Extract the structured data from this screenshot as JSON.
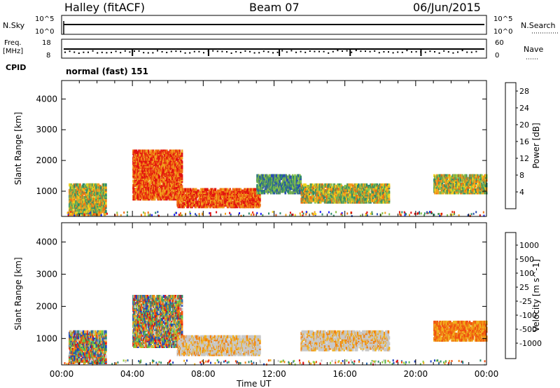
{
  "header": {
    "station": "Halley (fitACF)",
    "beam": "Beam 07",
    "date": "06/Jun/2015"
  },
  "panels": {
    "nsky": {
      "label": "N.Sky",
      "left_ticks": [
        "10^5",
        "10^0"
      ]
    },
    "nsearch": {
      "label": "N.Search",
      "right_ticks": [
        "10^5",
        "10^0"
      ]
    },
    "freq": {
      "label": "Freq.",
      "unit": "[MHz]",
      "left_ticks": [
        "18",
        "8"
      ]
    },
    "nave": {
      "label": "Nave",
      "right_ticks": [
        "60",
        "0"
      ]
    },
    "cpid": {
      "label": "CPID",
      "mode": "normal (fast) 151"
    }
  },
  "chart_data": [
    {
      "type": "heatmap",
      "quantity": "power",
      "ylabel": "Slant Range [km]",
      "xlabel": "Time UT",
      "xlim": [
        "00:00",
        "24:00"
      ],
      "ylim": [
        180,
        4600
      ],
      "x_ticks": [
        "00:00",
        "04:00",
        "08:00",
        "12:00",
        "16:00",
        "20:00",
        "00:00"
      ],
      "y_ticks": [
        1000,
        2000,
        3000,
        4000
      ],
      "colorbar": {
        "label": "Power [dB]",
        "ticks": [
          4,
          8,
          12,
          16,
          20,
          24,
          28
        ],
        "range": [
          0,
          30
        ],
        "colors": [
          "#1a1aff",
          "#2a4fb0",
          "#2d8a6a",
          "#5a9a5a",
          "#8ac24a",
          "#f2d21a",
          "#f0a020",
          "#f07010",
          "#e83010",
          "#e01010"
        ]
      },
      "echo_regions": [
        {
          "t_start": 0.4,
          "t_end": 2.5,
          "r_min": 300,
          "r_max": 1300,
          "level": "medium"
        },
        {
          "t_start": 4.0,
          "t_end": 6.8,
          "r_min": 800,
          "r_max": 2400,
          "level": "high"
        },
        {
          "t_start": 6.5,
          "t_end": 11.2,
          "r_min": 550,
          "r_max": 1150,
          "level": "high"
        },
        {
          "t_start": 11.0,
          "t_end": 13.5,
          "r_min": 1000,
          "r_max": 1600,
          "level": "low"
        },
        {
          "t_start": 13.5,
          "t_end": 18.5,
          "r_min": 700,
          "r_max": 1300,
          "level": "medium"
        },
        {
          "t_start": 21.0,
          "t_end": 24.0,
          "r_min": 1000,
          "r_max": 1600,
          "level": "medium"
        }
      ]
    },
    {
      "type": "heatmap",
      "quantity": "velocity",
      "ylabel": "Slant Range [km]",
      "xlabel": "Time UT",
      "xlim": [
        "00:00",
        "24:00"
      ],
      "ylim": [
        180,
        4600
      ],
      "x_ticks": [
        "00:00",
        "04:00",
        "08:00",
        "12:00",
        "16:00",
        "20:00",
        "00:00"
      ],
      "y_ticks": [
        1000,
        2000,
        3000,
        4000
      ],
      "colorbar": {
        "label": "Velocity [m s^-1]",
        "ticks": [
          "1000",
          "500",
          "100",
          "25",
          "-25",
          "-100",
          "-500",
          "-1000"
        ],
        "colors": [
          "#2040c0",
          "#2a6ab0",
          "#2d8a6a",
          "#5ab84a",
          "#8ad040",
          "#c8c8c8",
          "#f0b020",
          "#f08010",
          "#f05010",
          "#e01010"
        ]
      },
      "echo_regions": [
        {
          "t_start": 0.4,
          "t_end": 2.5,
          "r_min": 300,
          "r_max": 1300,
          "level": "mixed"
        },
        {
          "t_start": 4.0,
          "t_end": 6.8,
          "r_min": 800,
          "r_max": 2400,
          "level": "mixed"
        },
        {
          "t_start": 6.5,
          "t_end": 11.2,
          "r_min": 550,
          "r_max": 1150,
          "level": "ground"
        },
        {
          "t_start": 13.5,
          "t_end": 18.5,
          "r_min": 700,
          "r_max": 1300,
          "level": "ground"
        },
        {
          "t_start": 21.0,
          "t_end": 24.0,
          "r_min": 1000,
          "r_max": 1600,
          "level": "negative"
        }
      ]
    }
  ]
}
